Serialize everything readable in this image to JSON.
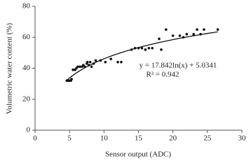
{
  "chart_data": {
    "type": "scatter",
    "x_label": "Sensor output (ADC)",
    "y_label": "Volumetric water content (%)",
    "x": [
      4.6,
      4.8,
      5.0,
      5.2,
      5.3,
      5.5,
      5.8,
      6.0,
      6.2,
      6.5,
      6.8,
      7.0,
      7.2,
      7.5,
      7.6,
      7.8,
      8.0,
      8.2,
      8.5,
      8.8,
      9.5,
      10.2,
      11,
      12,
      12.5,
      14,
      14.5,
      15,
      15.5,
      16,
      16.5,
      17,
      18,
      18.3,
      19,
      20,
      21,
      21.5,
      22,
      23,
      23.5,
      24,
      24.5,
      26.5
    ],
    "values": [
      32,
      32,
      32,
      32,
      33,
      39,
      39,
      40,
      41,
      41,
      41,
      42,
      41,
      43,
      44,
      42,
      44,
      41,
      43,
      45,
      45,
      44,
      46,
      44,
      44,
      52,
      53,
      53,
      53,
      52,
      53,
      53,
      59,
      52,
      65,
      61,
      61,
      60,
      62,
      62,
      65,
      62,
      65,
      65
    ],
    "color": "#111111",
    "fit": {
      "label": "y = 17.842ln(x) + 5.0341",
      "r2_label": "R² = 0.942",
      "a": 17.842,
      "b": 5.0341,
      "color": "#111111"
    },
    "xlim": [
      0,
      30
    ],
    "xticks": [
      0,
      5,
      10,
      15,
      20,
      25,
      30
    ],
    "ylim": [
      0,
      80
    ],
    "yticks": [
      0,
      20,
      40,
      60,
      80
    ],
    "grid": false
  }
}
